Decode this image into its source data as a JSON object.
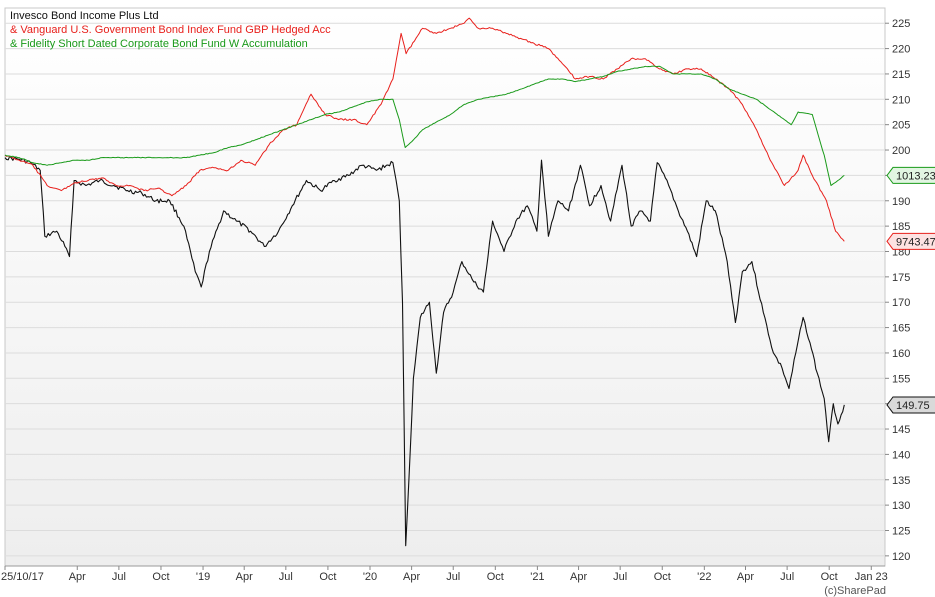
{
  "chart_data": {
    "type": "line",
    "title": "",
    "xlabel": "",
    "ylabel": "",
    "credit": "(c)SharePad",
    "grid": true,
    "legend_position": "top-left",
    "xlim": [
      "2017-10-25",
      "2023-01-31"
    ],
    "ylim": [
      118,
      228
    ],
    "y_ticks": [
      120,
      125,
      130,
      135,
      140,
      145,
      150,
      155,
      160,
      165,
      170,
      175,
      180,
      185,
      190,
      195,
      200,
      205,
      210,
      215,
      220,
      225
    ],
    "x_ticks": [
      {
        "date": "2017-10-25",
        "label": "25/10/17"
      },
      {
        "date": "2018-04-01",
        "label": "Apr"
      },
      {
        "date": "2018-07-01",
        "label": "Jul"
      },
      {
        "date": "2018-10-01",
        "label": "Oct"
      },
      {
        "date": "2019-01-01",
        "label": "'19"
      },
      {
        "date": "2019-04-01",
        "label": "Apr"
      },
      {
        "date": "2019-07-01",
        "label": "Jul"
      },
      {
        "date": "2019-10-01",
        "label": "Oct"
      },
      {
        "date": "2020-01-01",
        "label": "'20"
      },
      {
        "date": "2020-04-01",
        "label": "Apr"
      },
      {
        "date": "2020-07-01",
        "label": "Jul"
      },
      {
        "date": "2020-10-01",
        "label": "Oct"
      },
      {
        "date": "2021-01-01",
        "label": "'21"
      },
      {
        "date": "2021-04-01",
        "label": "Apr"
      },
      {
        "date": "2021-07-01",
        "label": "Jul"
      },
      {
        "date": "2021-10-01",
        "label": "Oct"
      },
      {
        "date": "2022-01-01",
        "label": "'22"
      },
      {
        "date": "2022-04-01",
        "label": "Apr"
      },
      {
        "date": "2022-07-01",
        "label": "Jul"
      },
      {
        "date": "2022-10-01",
        "label": "Oct"
      },
      {
        "date": "2023-01-01",
        "label": "Jan 23"
      }
    ],
    "series": [
      {
        "name": "Invesco Bond Income Plus Ltd",
        "legend_label": "Invesco Bond Income Plus Ltd",
        "color": "#111111",
        "last_label": "149.75",
        "points": [
          [
            "2017-10-25",
            198.5
          ],
          [
            "2017-11-25",
            198.2
          ],
          [
            "2017-12-20",
            197.5
          ],
          [
            "2018-01-10",
            196.0
          ],
          [
            "2018-01-20",
            183.0
          ],
          [
            "2018-02-15",
            184.0
          ],
          [
            "2018-03-05",
            181.0
          ],
          [
            "2018-03-15",
            179.0
          ],
          [
            "2018-03-25",
            194.0
          ],
          [
            "2018-04-20",
            193.0
          ],
          [
            "2018-05-20",
            194.0
          ],
          [
            "2018-06-20",
            193.0
          ],
          [
            "2018-07-20",
            192.0
          ],
          [
            "2018-08-20",
            191.5
          ],
          [
            "2018-09-20",
            190.0
          ],
          [
            "2018-10-20",
            190.0
          ],
          [
            "2018-11-20",
            185.0
          ],
          [
            "2018-12-15",
            176.0
          ],
          [
            "2018-12-28",
            173.0
          ],
          [
            "2019-01-15",
            180.0
          ],
          [
            "2019-02-15",
            188.0
          ],
          [
            "2019-03-15",
            186.0
          ],
          [
            "2019-04-15",
            184.0
          ],
          [
            "2019-05-15",
            181.0
          ],
          [
            "2019-06-15",
            184.0
          ],
          [
            "2019-07-15",
            189.0
          ],
          [
            "2019-08-15",
            194.0
          ],
          [
            "2019-09-15",
            192.0
          ],
          [
            "2019-10-15",
            194.0
          ],
          [
            "2019-11-15",
            195.0
          ],
          [
            "2019-12-15",
            197.0
          ],
          [
            "2020-01-15",
            196.0
          ],
          [
            "2020-02-20",
            197.5
          ],
          [
            "2020-03-05",
            190.0
          ],
          [
            "2020-03-12",
            170.0
          ],
          [
            "2020-03-19",
            122.0
          ],
          [
            "2020-03-26",
            135.0
          ],
          [
            "2020-04-05",
            155.0
          ],
          [
            "2020-04-20",
            167.0
          ],
          [
            "2020-05-10",
            170.0
          ],
          [
            "2020-05-25",
            156.0
          ],
          [
            "2020-06-10",
            168.0
          ],
          [
            "2020-07-01",
            172.0
          ],
          [
            "2020-07-20",
            178.0
          ],
          [
            "2020-08-15",
            174.0
          ],
          [
            "2020-09-05",
            172.0
          ],
          [
            "2020-09-25",
            186.0
          ],
          [
            "2020-10-20",
            180.0
          ],
          [
            "2020-11-15",
            186.0
          ],
          [
            "2020-12-10",
            189.0
          ],
          [
            "2020-12-31",
            184.0
          ],
          [
            "2021-01-10",
            198.0
          ],
          [
            "2021-01-25",
            183.0
          ],
          [
            "2021-02-15",
            190.0
          ],
          [
            "2021-03-10",
            188.0
          ],
          [
            "2021-04-05",
            197.0
          ],
          [
            "2021-04-25",
            189.0
          ],
          [
            "2021-05-20",
            193.0
          ],
          [
            "2021-06-10",
            186.0
          ],
          [
            "2021-07-05",
            197.0
          ],
          [
            "2021-07-25",
            185.0
          ],
          [
            "2021-08-15",
            188.0
          ],
          [
            "2021-09-05",
            186.0
          ],
          [
            "2021-09-20",
            197.5
          ],
          [
            "2021-10-15",
            193.0
          ],
          [
            "2021-11-05",
            188.0
          ],
          [
            "2021-11-25",
            184.0
          ],
          [
            "2021-12-15",
            179.0
          ],
          [
            "2022-01-05",
            190.0
          ],
          [
            "2022-01-25",
            188.0
          ],
          [
            "2022-02-20",
            178.0
          ],
          [
            "2022-03-10",
            166.0
          ],
          [
            "2022-03-25",
            176.0
          ],
          [
            "2022-04-15",
            178.0
          ],
          [
            "2022-05-10",
            168.0
          ],
          [
            "2022-06-01",
            160.0
          ],
          [
            "2022-06-20",
            157.0
          ],
          [
            "2022-07-05",
            153.0
          ],
          [
            "2022-07-20",
            160.0
          ],
          [
            "2022-08-05",
            167.0
          ],
          [
            "2022-08-20",
            162.0
          ],
          [
            "2022-09-05",
            156.0
          ],
          [
            "2022-09-20",
            151.0
          ],
          [
            "2022-09-30",
            142.5
          ],
          [
            "2022-10-10",
            150.0
          ],
          [
            "2022-10-20",
            146.0
          ],
          [
            "2022-11-03",
            149.75
          ]
        ]
      },
      {
        "name": "Vanguard U.S. Government Bond Index Fund GBP Hedged Acc",
        "legend_label": "& Vanguard U.S. Government Bond Index Fund GBP Hedged Acc",
        "color": "#e8201c",
        "last_label": "9743.47",
        "points": [
          [
            "2017-10-25",
            199.0
          ],
          [
            "2017-11-25",
            198.0
          ],
          [
            "2017-12-25",
            197.0
          ],
          [
            "2018-01-25",
            193.0
          ],
          [
            "2018-02-25",
            192.0
          ],
          [
            "2018-03-25",
            193.5
          ],
          [
            "2018-04-25",
            194.0
          ],
          [
            "2018-05-25",
            194.5
          ],
          [
            "2018-06-25",
            193.0
          ],
          [
            "2018-07-25",
            193.0
          ],
          [
            "2018-08-25",
            192.0
          ],
          [
            "2018-09-25",
            192.5
          ],
          [
            "2018-10-25",
            191.0
          ],
          [
            "2018-11-25",
            193.0
          ],
          [
            "2018-12-25",
            196.0
          ],
          [
            "2019-01-25",
            196.5
          ],
          [
            "2019-02-25",
            196.0
          ],
          [
            "2019-03-25",
            198.0
          ],
          [
            "2019-04-25",
            197.0
          ],
          [
            "2019-05-25",
            201.0
          ],
          [
            "2019-06-25",
            204.0
          ],
          [
            "2019-07-25",
            205.0
          ],
          [
            "2019-08-25",
            211.0
          ],
          [
            "2019-09-25",
            207.0
          ],
          [
            "2019-10-25",
            206.0
          ],
          [
            "2019-11-25",
            206.0
          ],
          [
            "2019-12-25",
            205.0
          ],
          [
            "2020-01-25",
            209.0
          ],
          [
            "2020-02-20",
            214.0
          ],
          [
            "2020-03-09",
            223.0
          ],
          [
            "2020-03-20",
            219.0
          ],
          [
            "2020-04-25",
            224.0
          ],
          [
            "2020-05-25",
            223.0
          ],
          [
            "2020-06-25",
            224.0
          ],
          [
            "2020-07-25",
            225.0
          ],
          [
            "2020-08-05",
            226.0
          ],
          [
            "2020-08-25",
            224.0
          ],
          [
            "2020-09-25",
            224.0
          ],
          [
            "2020-10-25",
            223.0
          ],
          [
            "2020-11-25",
            222.0
          ],
          [
            "2020-12-25",
            221.0
          ],
          [
            "2021-01-25",
            220.0
          ],
          [
            "2021-02-25",
            217.0
          ],
          [
            "2021-03-25",
            214.0
          ],
          [
            "2021-04-25",
            214.5
          ],
          [
            "2021-05-25",
            214.0
          ],
          [
            "2021-06-25",
            216.0
          ],
          [
            "2021-07-25",
            218.0
          ],
          [
            "2021-08-25",
            218.0
          ],
          [
            "2021-09-25",
            216.0
          ],
          [
            "2021-10-25",
            215.0
          ],
          [
            "2021-11-25",
            216.0
          ],
          [
            "2021-12-25",
            216.0
          ],
          [
            "2022-01-25",
            214.0
          ],
          [
            "2022-02-25",
            212.0
          ],
          [
            "2022-03-25",
            209.0
          ],
          [
            "2022-04-25",
            204.0
          ],
          [
            "2022-05-25",
            198.0
          ],
          [
            "2022-06-25",
            193.0
          ],
          [
            "2022-07-25",
            196.0
          ],
          [
            "2022-08-05",
            199.0
          ],
          [
            "2022-08-25",
            195.0
          ],
          [
            "2022-09-25",
            190.0
          ],
          [
            "2022-10-15",
            184.0
          ],
          [
            "2022-11-03",
            182.0
          ]
        ]
      },
      {
        "name": "Fidelity Short Dated Corporate Bond Fund W Accumulation",
        "legend_label": "& Fidelity Short Dated Corporate Bond Fund W Accumulation",
        "color": "#1a9a1a",
        "last_label": "1013.23",
        "points": [
          [
            "2017-10-25",
            199.0
          ],
          [
            "2017-11-25",
            198.5
          ],
          [
            "2017-12-25",
            197.5
          ],
          [
            "2018-01-25",
            197.0
          ],
          [
            "2018-02-25",
            197.5
          ],
          [
            "2018-03-25",
            198.0
          ],
          [
            "2018-04-25",
            198.0
          ],
          [
            "2018-05-25",
            198.5
          ],
          [
            "2018-06-25",
            198.5
          ],
          [
            "2018-07-25",
            198.5
          ],
          [
            "2018-08-25",
            198.5
          ],
          [
            "2018-09-25",
            198.5
          ],
          [
            "2018-10-25",
            198.5
          ],
          [
            "2018-11-25",
            198.5
          ],
          [
            "2018-12-25",
            199.0
          ],
          [
            "2019-01-25",
            199.5
          ],
          [
            "2019-02-25",
            200.5
          ],
          [
            "2019-03-25",
            201.0
          ],
          [
            "2019-04-25",
            202.0
          ],
          [
            "2019-05-25",
            203.0
          ],
          [
            "2019-06-25",
            204.0
          ],
          [
            "2019-07-25",
            205.0
          ],
          [
            "2019-08-25",
            206.0
          ],
          [
            "2019-09-25",
            207.0
          ],
          [
            "2019-10-25",
            207.5
          ],
          [
            "2019-11-25",
            208.5
          ],
          [
            "2019-12-25",
            209.5
          ],
          [
            "2020-01-25",
            210.0
          ],
          [
            "2020-02-20",
            210.0
          ],
          [
            "2020-03-05",
            206.0
          ],
          [
            "2020-03-18",
            200.5
          ],
          [
            "2020-04-05",
            202.0
          ],
          [
            "2020-04-25",
            204.0
          ],
          [
            "2020-05-25",
            205.5
          ],
          [
            "2020-06-25",
            207.0
          ],
          [
            "2020-07-25",
            209.0
          ],
          [
            "2020-08-25",
            210.0
          ],
          [
            "2020-09-25",
            210.5
          ],
          [
            "2020-10-25",
            211.0
          ],
          [
            "2020-11-25",
            212.0
          ],
          [
            "2020-12-25",
            213.0
          ],
          [
            "2021-01-25",
            214.0
          ],
          [
            "2021-02-25",
            214.0
          ],
          [
            "2021-03-25",
            213.5
          ],
          [
            "2021-04-25",
            214.0
          ],
          [
            "2021-05-25",
            214.5
          ],
          [
            "2021-06-25",
            215.5
          ],
          [
            "2021-07-25",
            216.0
          ],
          [
            "2021-08-25",
            216.5
          ],
          [
            "2021-09-25",
            216.5
          ],
          [
            "2021-10-25",
            215.0
          ],
          [
            "2021-11-25",
            215.0
          ],
          [
            "2021-12-25",
            215.0
          ],
          [
            "2022-01-25",
            214.0
          ],
          [
            "2022-02-25",
            212.0
          ],
          [
            "2022-03-25",
            211.0
          ],
          [
            "2022-04-25",
            210.0
          ],
          [
            "2022-05-25",
            208.0
          ],
          [
            "2022-06-25",
            206.0
          ],
          [
            "2022-07-10",
            205.0
          ],
          [
            "2022-07-25",
            207.5
          ],
          [
            "2022-08-25",
            207.0
          ],
          [
            "2022-09-10",
            202.0
          ],
          [
            "2022-09-20",
            199.0
          ],
          [
            "2022-10-05",
            193.0
          ],
          [
            "2022-10-20",
            194.0
          ],
          [
            "2022-11-03",
            195.0
          ]
        ]
      }
    ]
  }
}
